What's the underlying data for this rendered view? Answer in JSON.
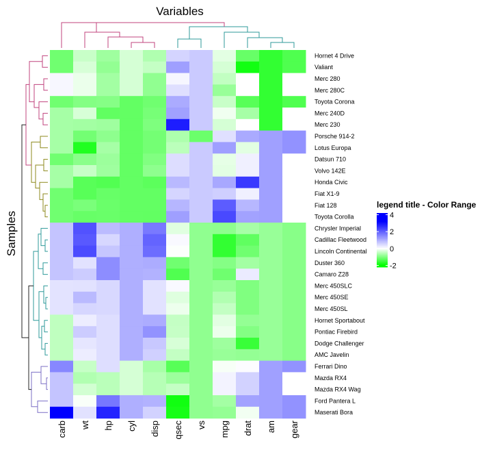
{
  "chart_data": {
    "type": "heatmap",
    "title": "Variables",
    "ylabel": "Samples",
    "legend": {
      "title": "legend title - Color Range",
      "ticks": [
        4,
        2,
        0,
        -2
      ],
      "range": [
        -2.2,
        4.2
      ],
      "placement": "right"
    },
    "colors": {
      "low": "#00ff00",
      "mid": "#ffffff",
      "high": "#0000ff"
    },
    "columns": [
      "carb",
      "wt",
      "hp",
      "cyl",
      "disp",
      "qsec",
      "vs",
      "mpg",
      "drat",
      "am",
      "gear"
    ],
    "rows": [
      "Hornet 4 Drive",
      "Valiant",
      "Merc 280",
      "Merc 280C",
      "Toyota Corona",
      "Merc 240D",
      "Merc 230",
      "Porsche 914-2",
      "Lotus Europa",
      "Datsun 710",
      "Volvo 142E",
      "Honda Civic",
      "Fiat X1-9",
      "Fiat 128",
      "Toyota Corolla",
      "Chrysler Imperial",
      "Cadillac Fleetwood",
      "Lincoln Continental",
      "Duster 360",
      "Camaro Z28",
      "Merc 450SLC",
      "Merc 450SE",
      "Merc 450SL",
      "Hornet Sportabout",
      "Pontiac Firebird",
      "Dodge Challenger",
      "AMC Javelin",
      "Ferrari Dino",
      "Mazda RX4",
      "Mazda RX4 Wag",
      "Ford Pantera L",
      "Maserati Bora"
    ],
    "values": [
      [
        -1.12,
        -0.43,
        -0.75,
        -0.33,
        -0.62,
        0.54,
        0.66,
        -0.22,
        -1.19,
        -1.61,
        -1.38
      ],
      [
        -1.12,
        -0.31,
        -0.85,
        -0.33,
        -0.46,
        1.2,
        0.66,
        -0.33,
        -1.86,
        -1.61,
        -1.38
      ],
      [
        0.1,
        -0.16,
        -0.72,
        -0.33,
        -0.86,
        0.11,
        0.66,
        -0.48,
        0.0,
        -1.61,
        0.0
      ],
      [
        0.1,
        -0.16,
        -0.72,
        -0.33,
        -0.86,
        0.4,
        0.66,
        -0.81,
        0.0,
        -1.61,
        0.0
      ],
      [
        -1.12,
        -0.97,
        -0.95,
        -1.22,
        -1.12,
        1.05,
        0.66,
        -0.43,
        -1.31,
        -1.61,
        -1.38
      ],
      [
        -0.7,
        -0.31,
        -1.24,
        -1.22,
        -1.07,
        1.18,
        0.66,
        -0.12,
        -0.7,
        -1.61,
        0.0
      ],
      [
        -0.7,
        -0.72,
        -0.75,
        -1.22,
        -1.01,
        2.83,
        0.66,
        -0.33,
        0.0,
        -1.61,
        0.0
      ],
      [
        -0.7,
        -1.1,
        -0.89,
        -1.22,
        -1.09,
        -0.64,
        -1.16,
        0.39,
        1.07,
        1.19,
        1.37
      ],
      [
        -0.7,
        -1.74,
        -0.7,
        -1.22,
        -1.09,
        -0.53,
        0.66,
        1.2,
        -0.23,
        1.19,
        1.37
      ],
      [
        -1.12,
        -0.92,
        -0.78,
        -1.22,
        -0.99,
        0.43,
        0.66,
        -0.2,
        0.19,
        1.19,
        0.0
      ],
      [
        -0.7,
        -0.45,
        -0.75,
        -1.22,
        -0.89,
        0.43,
        0.66,
        -0.22,
        0.19,
        1.19,
        0.0
      ],
      [
        -0.7,
        -1.31,
        -1.36,
        -1.22,
        -1.28,
        0.88,
        0.66,
        1.09,
        2.49,
        1.19,
        0.0
      ],
      [
        -1.12,
        -1.31,
        -1.19,
        -1.22,
        -1.22,
        0.53,
        0.66,
        0.6,
        0.19,
        1.19,
        0.0
      ],
      [
        -1.12,
        -1.04,
        -1.17,
        -1.22,
        -1.22,
        0.91,
        0.66,
        2.04,
        0.9,
        1.19,
        0.0
      ],
      [
        -1.12,
        -1.19,
        -1.18,
        -1.22,
        -1.23,
        1.2,
        0.66,
        2.29,
        1.17,
        1.19,
        0.0
      ],
      [
        0.74,
        2.17,
        0.85,
        1.01,
        1.68,
        -0.24,
        -0.87,
        -0.89,
        -0.69,
        -0.81,
        -0.93
      ],
      [
        0.74,
        2.08,
        0.5,
        1.01,
        1.95,
        0.07,
        -0.87,
        -1.61,
        -1.25,
        -0.81,
        -0.93
      ],
      [
        0.74,
        2.26,
        0.71,
        1.01,
        1.85,
        -0.02,
        -0.87,
        -1.61,
        -1.12,
        -0.81,
        -0.93
      ],
      [
        0.74,
        0.36,
        1.43,
        1.01,
        1.04,
        -1.12,
        -0.87,
        -0.96,
        -0.72,
        -0.81,
        -0.93
      ],
      [
        0.74,
        0.64,
        1.43,
        1.01,
        0.97,
        -1.37,
        -0.87,
        -1.13,
        0.25,
        -0.81,
        -0.93
      ],
      [
        0.35,
        0.37,
        0.49,
        1.01,
        0.37,
        0.08,
        -0.87,
        -0.81,
        -1.0,
        -0.81,
        -0.93
      ],
      [
        0.35,
        0.87,
        0.49,
        1.01,
        0.37,
        -0.25,
        -0.87,
        -0.61,
        -1.0,
        -0.81,
        -0.93
      ],
      [
        0.35,
        0.52,
        0.49,
        1.01,
        0.37,
        -0.14,
        -0.87,
        -0.47,
        -1.0,
        -0.81,
        -0.93
      ],
      [
        -0.5,
        0.23,
        0.41,
        1.01,
        1.04,
        -0.46,
        -0.87,
        -0.23,
        -0.84,
        -0.81,
        -0.93
      ],
      [
        -0.5,
        0.64,
        0.41,
        1.01,
        1.37,
        -0.45,
        -0.87,
        -0.15,
        -0.97,
        -0.81,
        -0.93
      ],
      [
        -0.5,
        0.31,
        0.41,
        1.01,
        0.69,
        -0.31,
        -0.87,
        -0.76,
        -1.56,
        -0.81,
        -0.93
      ],
      [
        -0.5,
        0.22,
        0.41,
        1.01,
        0.59,
        -0.47,
        -0.87,
        -0.81,
        -0.84,
        -0.81,
        -0.93
      ],
      [
        1.5,
        -0.45,
        0.41,
        -0.33,
        -0.69,
        -1.32,
        -0.87,
        -0.06,
        0.04,
        1.19,
        1.37
      ],
      [
        0.74,
        -0.61,
        -0.54,
        -0.33,
        -0.57,
        -0.78,
        -0.87,
        0.15,
        0.57,
        1.19,
        0.0
      ],
      [
        0.74,
        -0.35,
        -0.54,
        -0.33,
        -0.57,
        -0.46,
        -0.87,
        0.15,
        0.57,
        1.19,
        0.0
      ],
      [
        0.74,
        -0.05,
        1.71,
        1.01,
        0.97,
        -1.87,
        -0.87,
        -0.71,
        1.17,
        1.19,
        1.37
      ],
      [
        3.21,
        0.36,
        2.75,
        1.01,
        0.57,
        -1.82,
        -0.87,
        -0.84,
        -0.1,
        1.19,
        1.37
      ]
    ]
  }
}
